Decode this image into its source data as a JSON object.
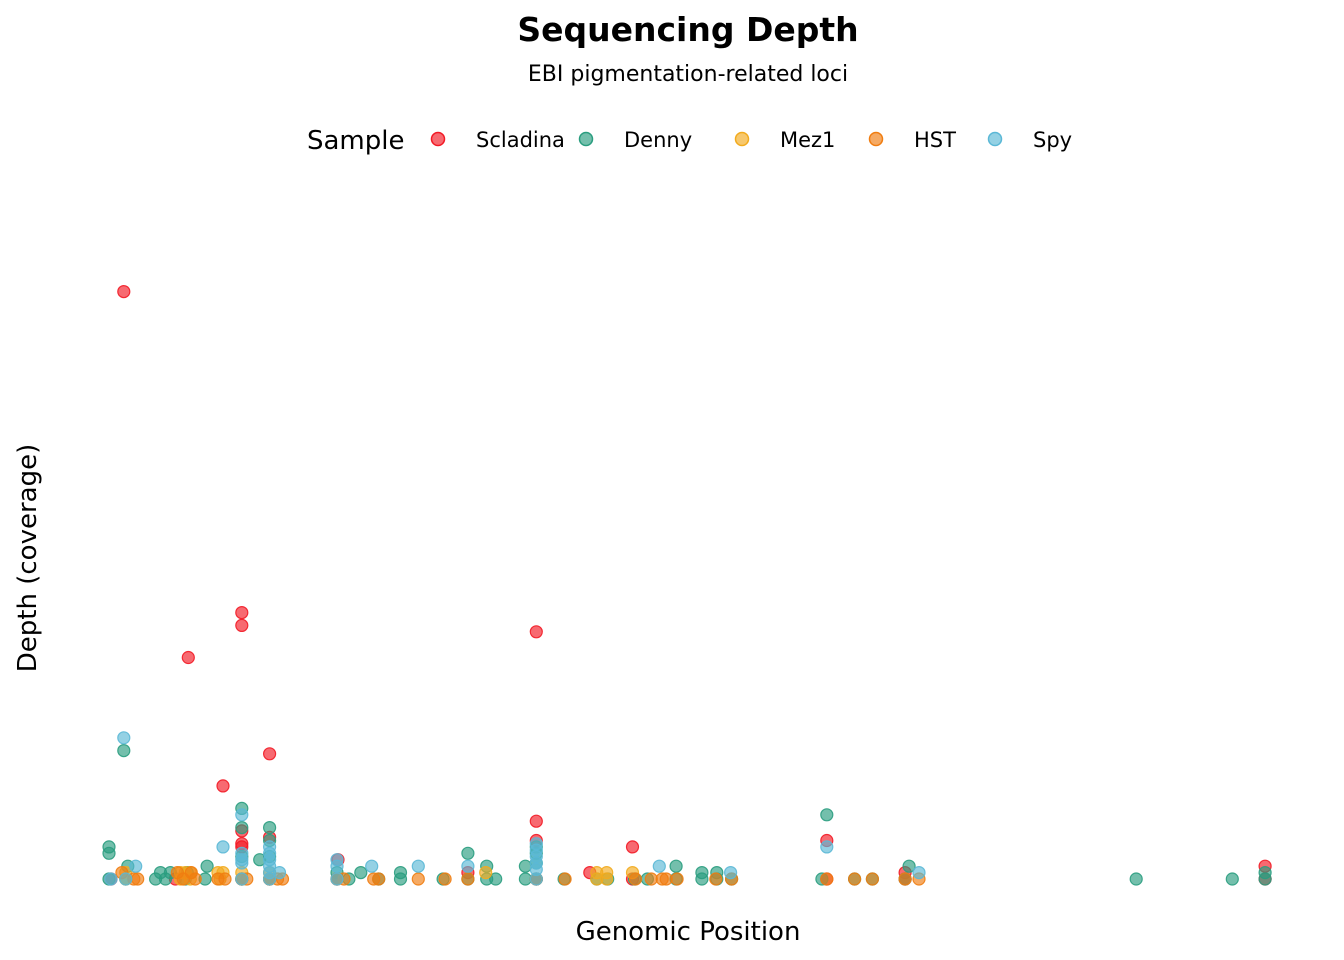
{
  "chart_data": {
    "type": "scatter",
    "title": "Sequencing Depth",
    "subtitle": "EBI pigmentation-related loci",
    "xlabel": "Genomic Position",
    "ylabel": "Depth (coverage)",
    "xlim": [
      0,
      1175
    ],
    "ylim": [
      0,
      100
    ],
    "grid": false,
    "axes_ticks_visible": false,
    "legend": {
      "title": "Sample",
      "position": "top"
    },
    "series": [
      {
        "name": "Scladina",
        "color": "#F21A25",
        "points": [
          [
            18,
            91.5
          ],
          [
            83,
            34.5
          ],
          [
            137,
            39.5
          ],
          [
            137,
            41.5
          ],
          [
            165,
            19.5
          ],
          [
            118,
            14.5
          ],
          [
            137,
            7.5
          ],
          [
            137,
            5
          ],
          [
            137,
            5.5
          ],
          [
            165,
            6.5
          ],
          [
            434,
            38.5
          ],
          [
            434,
            9
          ],
          [
            434,
            6
          ],
          [
            531,
            5
          ],
          [
            727,
            6
          ],
          [
            1169,
            2
          ],
          [
            806,
            1
          ],
          [
            234,
            3
          ],
          [
            365,
            1
          ],
          [
            488,
            1
          ],
          [
            5,
            0
          ],
          [
            70,
            0
          ],
          [
            137,
            0
          ],
          [
            165,
            0
          ],
          [
            233,
            0
          ],
          [
            434,
            0
          ],
          [
            531,
            0
          ],
          [
            727,
            0
          ],
          [
            806,
            0
          ],
          [
            1169,
            0
          ]
        ]
      },
      {
        "name": "Denny",
        "color": "#2A9D7F",
        "points": [
          [
            18,
            20
          ],
          [
            3,
            5
          ],
          [
            3,
            4
          ],
          [
            22,
            2
          ],
          [
            102,
            2
          ],
          [
            137,
            11
          ],
          [
            165,
            8
          ],
          [
            137,
            8
          ],
          [
            165,
            6
          ],
          [
            165,
            3.5
          ],
          [
            137,
            3.5
          ],
          [
            155,
            3
          ],
          [
            365,
            4
          ],
          [
            384,
            2
          ],
          [
            423,
            2
          ],
          [
            434,
            5
          ],
          [
            434,
            4
          ],
          [
            434,
            2.5
          ],
          [
            575,
            2
          ],
          [
            601,
            1
          ],
          [
            616,
            1
          ],
          [
            727,
            10
          ],
          [
            810,
            2
          ],
          [
            1169,
            1
          ],
          [
            297,
            1
          ],
          [
            233,
            1
          ],
          [
            257,
            1
          ],
          [
            55,
            1
          ],
          [
            65,
            1
          ],
          [
            82,
            1
          ],
          [
            3,
            0
          ],
          [
            20,
            0
          ],
          [
            50,
            0
          ],
          [
            60,
            0
          ],
          [
            80,
            0
          ],
          [
            100,
            0
          ],
          [
            137,
            0
          ],
          [
            165,
            0
          ],
          [
            233,
            0
          ],
          [
            245,
            0
          ],
          [
            275,
            0
          ],
          [
            297,
            0
          ],
          [
            340,
            0
          ],
          [
            365,
            0
          ],
          [
            384,
            0
          ],
          [
            393,
            0
          ],
          [
            423,
            0
          ],
          [
            434,
            0
          ],
          [
            462,
            0
          ],
          [
            495,
            0
          ],
          [
            506,
            0
          ],
          [
            533,
            0
          ],
          [
            546,
            0
          ],
          [
            575,
            0
          ],
          [
            601,
            0
          ],
          [
            616,
            0
          ],
          [
            631,
            0
          ],
          [
            722,
            0
          ],
          [
            755,
            0
          ],
          [
            773,
            0
          ],
          [
            806,
            0
          ],
          [
            1039,
            0
          ],
          [
            1136,
            0
          ],
          [
            1169,
            0
          ]
        ]
      },
      {
        "name": "Mez1",
        "color": "#F2AB1E",
        "points": [
          [
            113,
            1
          ],
          [
            118,
            1
          ],
          [
            75,
            1
          ],
          [
            80,
            1
          ],
          [
            85,
            1
          ],
          [
            20,
            1
          ],
          [
            495,
            1
          ],
          [
            505,
            1
          ],
          [
            383,
            1
          ],
          [
            531,
            1
          ],
          [
            137,
            1
          ],
          [
            165,
            1
          ],
          [
            115,
            0
          ],
          [
            75,
            0
          ],
          [
            85,
            0
          ],
          [
            20,
            0
          ],
          [
            495,
            0
          ],
          [
            505,
            0
          ],
          [
            137,
            0
          ],
          [
            165,
            0
          ]
        ]
      },
      {
        "name": "HST",
        "color": "#F07D11",
        "points": [
          [
            16,
            1
          ],
          [
            28,
            0
          ],
          [
            32,
            0
          ],
          [
            72,
            1
          ],
          [
            78,
            0
          ],
          [
            86,
            1
          ],
          [
            90,
            0
          ],
          [
            113,
            0
          ],
          [
            120,
            0
          ],
          [
            137,
            0
          ],
          [
            142,
            0
          ],
          [
            165,
            0
          ],
          [
            173,
            0
          ],
          [
            178,
            0
          ],
          [
            233,
            0
          ],
          [
            240,
            0
          ],
          [
            270,
            0
          ],
          [
            275,
            0
          ],
          [
            315,
            0
          ],
          [
            342,
            0
          ],
          [
            365,
            0
          ],
          [
            434,
            0
          ],
          [
            463,
            0
          ],
          [
            534,
            0
          ],
          [
            550,
            0
          ],
          [
            561,
            0
          ],
          [
            565,
            0
          ],
          [
            576,
            0
          ],
          [
            615,
            0
          ],
          [
            631,
            0
          ],
          [
            727,
            0
          ],
          [
            755,
            0
          ],
          [
            773,
            0
          ],
          [
            806,
            0
          ],
          [
            820,
            0
          ]
        ]
      },
      {
        "name": "Spy",
        "color": "#5BB8D6",
        "points": [
          [
            18,
            22
          ],
          [
            137,
            10
          ],
          [
            118,
            5
          ],
          [
            137,
            4
          ],
          [
            137,
            3
          ],
          [
            137,
            2.5
          ],
          [
            165,
            5
          ],
          [
            165,
            4
          ],
          [
            165,
            3
          ],
          [
            165,
            2
          ],
          [
            165,
            1
          ],
          [
            30,
            2
          ],
          [
            175,
            1
          ],
          [
            233,
            3
          ],
          [
            233,
            2
          ],
          [
            268,
            2
          ],
          [
            315,
            2
          ],
          [
            365,
            2
          ],
          [
            434,
            5.5
          ],
          [
            434,
            4.5
          ],
          [
            434,
            3.5
          ],
          [
            434,
            2.5
          ],
          [
            434,
            1.5
          ],
          [
            558,
            2
          ],
          [
            630,
            1
          ],
          [
            727,
            5
          ],
          [
            820,
            1
          ],
          [
            5,
            0
          ],
          [
            20,
            0
          ],
          [
            137,
            0
          ],
          [
            165,
            0
          ],
          [
            233,
            0
          ],
          [
            434,
            0
          ]
        ]
      }
    ]
  }
}
